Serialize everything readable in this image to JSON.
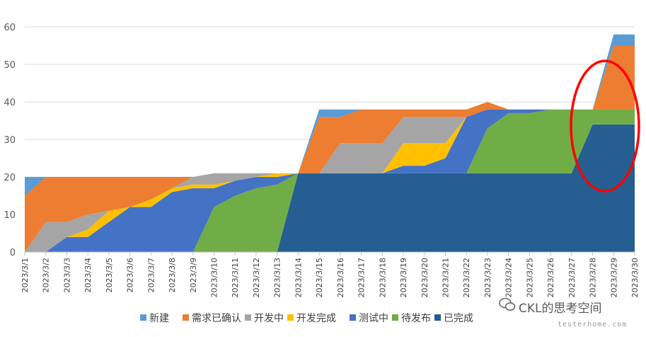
{
  "chart_data": {
    "type": "area",
    "stacked": true,
    "categories": [
      "2023/3/1",
      "2023/3/2",
      "2023/3/3",
      "2023/3/4",
      "2023/3/5",
      "2023/3/6",
      "2023/3/7",
      "2023/3/8",
      "2023/3/9",
      "2023/3/10",
      "2023/3/11",
      "2023/3/12",
      "2023/3/13",
      "2023/3/14",
      "2023/3/15",
      "2023/3/16",
      "2023/3/17",
      "2023/3/18",
      "2023/3/19",
      "2023/3/20",
      "2023/3/21",
      "2023/3/22",
      "2023/3/23",
      "2023/3/24",
      "2023/3/25",
      "2023/3/26",
      "2023/3/27",
      "2023/3/28",
      "2023/3/29",
      "2023/3/30"
    ],
    "series": [
      {
        "name": "已完成",
        "color": "#255E91",
        "values": [
          0,
          0,
          0,
          0,
          0,
          0,
          0,
          0,
          0,
          0,
          0,
          0,
          0,
          21,
          21,
          21,
          21,
          21,
          21,
          21,
          21,
          21,
          21,
          21,
          21,
          21,
          21,
          34,
          34,
          34
        ]
      },
      {
        "name": "待发布",
        "color": "#70AD47",
        "values": [
          0,
          0,
          0,
          0,
          0,
          0,
          0,
          0,
          0,
          12,
          15,
          17,
          18,
          0,
          0,
          0,
          0,
          0,
          0,
          0,
          0,
          0,
          12,
          16,
          16,
          17,
          17,
          4,
          4,
          4
        ]
      },
      {
        "name": "测试中",
        "color": "#4472C4",
        "values": [
          0,
          0,
          4,
          4,
          8,
          12,
          12,
          16,
          17,
          5,
          4,
          3,
          2,
          0,
          0,
          0,
          0,
          0,
          2,
          2,
          4,
          15,
          5,
          1,
          1,
          0,
          0,
          0,
          0,
          0
        ]
      },
      {
        "name": "开发完成",
        "color": "#FFC000",
        "values": [
          0,
          0,
          0,
          2,
          3,
          0,
          2,
          1,
          1,
          1,
          0,
          0,
          1,
          0,
          0,
          0,
          0,
          0,
          6,
          6,
          4,
          0,
          0,
          0,
          0,
          0,
          0,
          0,
          0,
          0
        ]
      },
      {
        "name": "开发中",
        "color": "#A5A5A5",
        "values": [
          0,
          8,
          4,
          4,
          0,
          0,
          0,
          0,
          2,
          3,
          2,
          1,
          0,
          0,
          0,
          8,
          8,
          8,
          7,
          7,
          7,
          0,
          0,
          0,
          0,
          0,
          0,
          0,
          0,
          0
        ]
      },
      {
        "name": "需求已确认",
        "color": "#ED7D31",
        "values": [
          15,
          12,
          12,
          10,
          9,
          8,
          6,
          3,
          0,
          0,
          0,
          0,
          0,
          0,
          15,
          7,
          9,
          9,
          2,
          2,
          2,
          2,
          2,
          0,
          0,
          0,
          0,
          0,
          17,
          17
        ]
      },
      {
        "name": "新建",
        "color": "#5B9BD5",
        "values": [
          5,
          0,
          0,
          0,
          0,
          0,
          0,
          0,
          0,
          0,
          0,
          0,
          0,
          0,
          2,
          2,
          0,
          0,
          0,
          0,
          0,
          0,
          0,
          0,
          0,
          0,
          0,
          0,
          3,
          3
        ]
      }
    ],
    "legend_order": [
      "新建",
      "需求已确认",
      "开发中",
      "开发完成",
      "测试中",
      "待发布",
      "已完成"
    ],
    "ylim": [
      0,
      60
    ],
    "yticks": [
      0,
      10,
      20,
      30,
      40,
      50,
      60
    ],
    "grid": true,
    "legend_position": "bottom",
    "annotation": {
      "shape": "ellipse",
      "color": "#FF0000",
      "around": [
        "2023/3/28",
        "2023/3/29"
      ]
    }
  },
  "watermark": {
    "brand": "CKL的思考空间",
    "site": "testerhome.com",
    "icon": "wechat-icon"
  }
}
